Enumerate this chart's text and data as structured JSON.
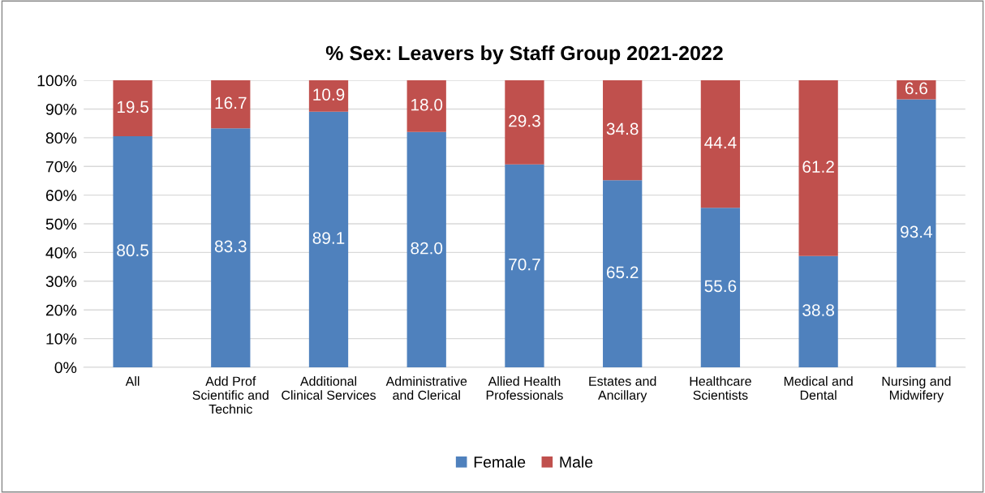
{
  "chart_data": {
    "type": "bar",
    "title": "% Sex: Leavers by Staff Group 2021-2022",
    "categories": [
      "All",
      "Add Prof Scientific and Technic",
      "Additional Clinical Services",
      "Administrative and Clerical",
      "Allied Health Professionals",
      "Estates and Ancillary",
      "Healthcare Scientists",
      "Medical and Dental",
      "Nursing and Midwifery"
    ],
    "series": [
      {
        "name": "Female",
        "color": "#4f81bd",
        "values": [
          80.5,
          83.3,
          89.1,
          82.0,
          70.7,
          65.2,
          55.6,
          38.8,
          93.4
        ],
        "value_labels": [
          "80.5",
          "83.3",
          "89.1",
          "82.0",
          "70.7",
          "65.2",
          "55.6",
          "38.8",
          "93.4"
        ]
      },
      {
        "name": "Male",
        "color": "#c0504d",
        "values": [
          19.5,
          16.7,
          10.9,
          18.0,
          29.3,
          34.8,
          44.4,
          61.2,
          6.6
        ],
        "value_labels": [
          "19.5",
          "16.7",
          "10.9",
          "18.0",
          "29.3",
          "34.8",
          "44.4",
          "61.2",
          "6.6"
        ]
      }
    ],
    "stacked": true,
    "ylim": [
      0,
      100
    ],
    "yticks": [
      {
        "value": 0,
        "label": "0%"
      },
      {
        "value": 10,
        "label": "10%"
      },
      {
        "value": 20,
        "label": "20%"
      },
      {
        "value": 30,
        "label": "30%"
      },
      {
        "value": 40,
        "label": "40%"
      },
      {
        "value": 50,
        "label": "50%"
      },
      {
        "value": 60,
        "label": "60%"
      },
      {
        "value": 70,
        "label": "70%"
      },
      {
        "value": 80,
        "label": "80%"
      },
      {
        "value": 90,
        "label": "90%"
      },
      {
        "value": 100,
        "label": "100%"
      }
    ],
    "grid": "y",
    "legend": "bottom"
  }
}
